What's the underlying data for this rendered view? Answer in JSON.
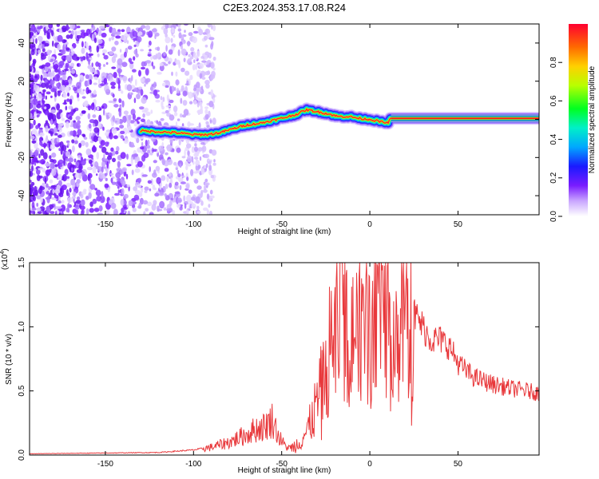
{
  "title": "C2E3.2024.353.17.08.R24",
  "chart_data": [
    {
      "type": "heatmap",
      "xlabel": "Height of straight line (km)",
      "ylabel": "Frequency (Hz)",
      "xlim": [
        -193,
        96
      ],
      "ylim": [
        -50,
        50
      ],
      "xticks": [
        -150,
        -100,
        -50,
        0,
        50
      ],
      "yticks": [
        -40,
        -20,
        0,
        20,
        40
      ],
      "colorbar": {
        "label": "Normalized spectral amplitude",
        "ticks": [
          "0.0",
          "0.2",
          "0.4",
          "0.6",
          "0.8"
        ],
        "tick_values": [
          0.0,
          0.2,
          0.4,
          0.6,
          0.8
        ],
        "range": [
          0,
          1
        ]
      },
      "ridge": {
        "x": [
          -130,
          -120,
          -110,
          -100,
          -92,
          -85,
          -78,
          -70,
          -62,
          -55,
          -48,
          -42,
          -36,
          -30,
          -24,
          -18,
          -12,
          -6,
          0,
          5,
          10,
          12,
          96
        ],
        "y": [
          -6,
          -6.5,
          -7,
          -8,
          -8,
          -7,
          -5,
          -3,
          -2,
          -0.5,
          1,
          2.5,
          5,
          4,
          3,
          1.5,
          1.5,
          0.5,
          0,
          -1,
          -2,
          0.5,
          0.5
        ]
      },
      "noise_region_x": [
        -193,
        -88
      ]
    },
    {
      "type": "line",
      "xlabel": "Height of straight line (km)",
      "ylabel": "SNR (10 * v/v)",
      "scale_label": "(x10",
      "scale_exp": "4",
      "scale_close": ")",
      "xlim": [
        -193,
        96
      ],
      "ylim": [
        0,
        1.5
      ],
      "xticks": [
        -150,
        -100,
        -50,
        0,
        50
      ],
      "yticks": [
        "0.0",
        "0.5",
        "1.0",
        "1.5"
      ],
      "ytick_values": [
        0,
        0.5,
        1.0,
        1.5
      ],
      "color": "#e8383b",
      "envelope": {
        "x": [
          -193,
          -120,
          -100,
          -90,
          -85,
          -80,
          -75,
          -70,
          -65,
          -60,
          -55,
          -52,
          -48,
          -45,
          -40,
          -35,
          -30,
          -27,
          -24,
          -20,
          -15,
          -10,
          -5,
          0,
          5,
          10,
          15,
          20,
          25,
          30,
          35,
          40,
          45,
          50,
          55,
          60,
          70,
          80,
          90,
          96
        ],
        "y": [
          0.01,
          0.02,
          0.04,
          0.06,
          0.08,
          0.1,
          0.13,
          0.16,
          0.2,
          0.22,
          0.28,
          0.15,
          0.07,
          0.05,
          0.1,
          0.2,
          0.4,
          0.55,
          0.75,
          0.95,
          1.1,
          1.05,
          1.1,
          1.1,
          1.15,
          1.0,
          0.95,
          1.05,
          1.1,
          1.0,
          0.9,
          0.9,
          0.85,
          0.72,
          0.65,
          0.6,
          0.55,
          0.52,
          0.5,
          0.48
        ]
      }
    }
  ]
}
